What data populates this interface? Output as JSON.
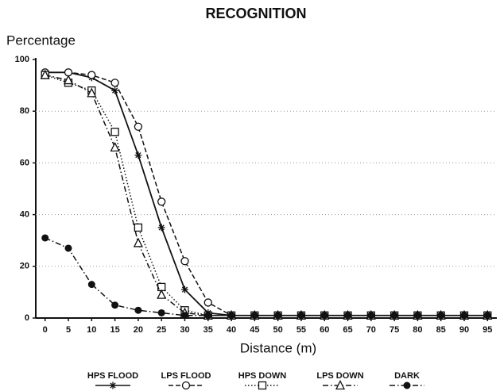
{
  "chart_data": {
    "type": "line",
    "title": "RECOGNITION",
    "y_label": "Percentage",
    "x_label": "Distance (m)",
    "x": [
      0,
      5,
      10,
      15,
      20,
      25,
      30,
      35,
      40,
      45,
      50,
      55,
      60,
      65,
      70,
      75,
      80,
      85,
      90,
      95
    ],
    "xlim": [
      -2,
      97
    ],
    "xticks": [
      0,
      5,
      10,
      15,
      20,
      25,
      30,
      35,
      40,
      45,
      50,
      55,
      60,
      65,
      70,
      75,
      80,
      85,
      90,
      95
    ],
    "ylim": [
      0,
      100
    ],
    "yticks": [
      0,
      20,
      40,
      60,
      80,
      100
    ],
    "grid": true,
    "series": [
      {
        "name": "HPS FLOOD",
        "color": "#111111",
        "linestyle": "solid",
        "marker": "star",
        "values": [
          95,
          95,
          93,
          88,
          63,
          35,
          11,
          2,
          1,
          1,
          1,
          1,
          1,
          1,
          1,
          1,
          1,
          1,
          1,
          1
        ]
      },
      {
        "name": "LPS FLOOD",
        "color": "#111111",
        "linestyle": "dashed",
        "marker": "circle-open",
        "values": [
          95,
          95,
          94,
          91,
          74,
          45,
          22,
          6,
          1,
          1,
          1,
          1,
          1,
          1,
          1,
          1,
          1,
          1,
          1,
          1
        ]
      },
      {
        "name": "HPS DOWN",
        "color": "#111111",
        "linestyle": "dotted",
        "marker": "square-open",
        "values": [
          94,
          91,
          88,
          72,
          35,
          12,
          3,
          1,
          1,
          1,
          1,
          1,
          1,
          1,
          1,
          1,
          1,
          1,
          1,
          1
        ]
      },
      {
        "name": "LPS DOWN",
        "color": "#111111",
        "linestyle": "dashdot",
        "marker": "triangle-open",
        "values": [
          94,
          92,
          87,
          66,
          29,
          9,
          2,
          1,
          1,
          1,
          1,
          1,
          1,
          1,
          1,
          1,
          1,
          1,
          1,
          1
        ]
      },
      {
        "name": "DARK",
        "color": "#111111",
        "linestyle": "dashdot",
        "marker": "circle-filled",
        "values": [
          31,
          27,
          13,
          5,
          3,
          2,
          1,
          1,
          1,
          1,
          1,
          1,
          1,
          1,
          1,
          1,
          1,
          1,
          1,
          1
        ]
      }
    ]
  }
}
